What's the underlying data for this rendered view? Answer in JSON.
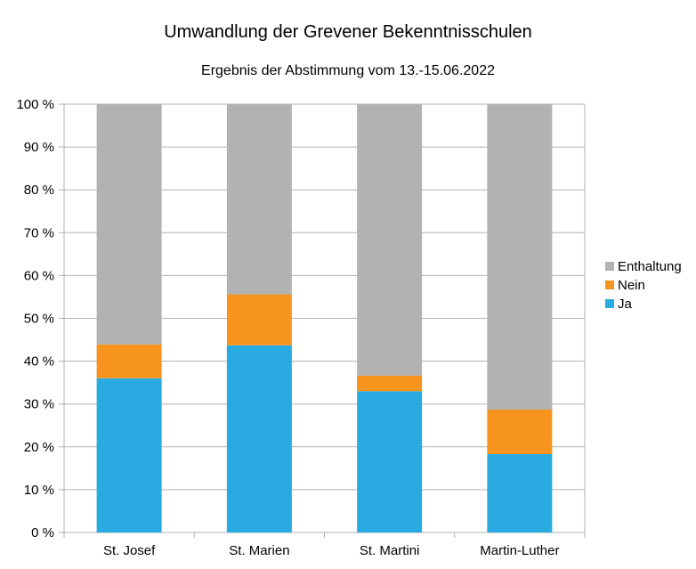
{
  "chart_data": {
    "type": "bar",
    "stacked": true,
    "title": "Umwandlung der Grevener Bekenntnisschulen",
    "subtitle": "Ergebnis der Abstimmung vom 13.-15.06.2022",
    "categories": [
      "St. Josef",
      "St. Marien",
      "St. Martini",
      "Martin-Luther"
    ],
    "series": [
      {
        "name": "Ja",
        "color": "#29abe2",
        "values": [
          36.0,
          43.7,
          33.0,
          18.3
        ]
      },
      {
        "name": "Nein",
        "color": "#f7941d",
        "values": [
          7.9,
          11.9,
          3.6,
          10.4
        ]
      },
      {
        "name": "Enthaltung",
        "color": "#b2b2b2",
        "values": [
          56.1,
          44.4,
          63.4,
          71.3
        ]
      }
    ],
    "ylim": [
      0,
      100
    ],
    "yticks": [
      "0 %",
      "10 %",
      "20 %",
      "30 %",
      "40 %",
      "50 %",
      "60 %",
      "70 %",
      "80 %",
      "90 %",
      "100 %"
    ],
    "grid": true,
    "legend_position": "right",
    "legend_order": [
      "Enthaltung",
      "Nein",
      "Ja"
    ]
  }
}
